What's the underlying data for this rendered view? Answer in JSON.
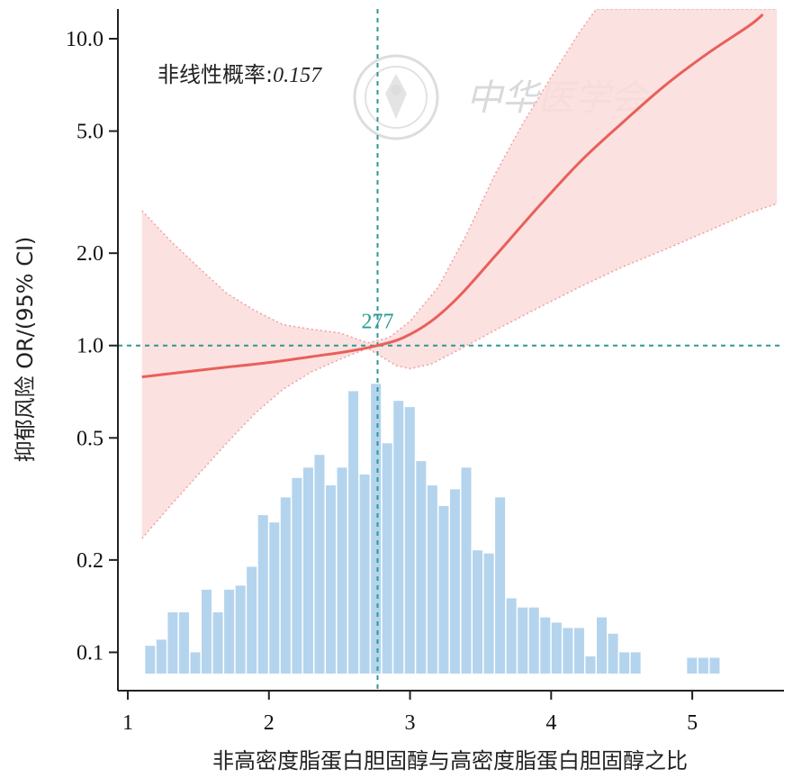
{
  "chart_data": {
    "type": "line",
    "xlabel": "非高密度脂蛋白胆固醇与高密度脂蛋白胆固醇之比",
    "ylabel": "抑郁风险 OR/(95% CI)",
    "y_scale": "log",
    "xlim": [
      0.93,
      5.65
    ],
    "ylim": [
      0.075,
      12.5
    ],
    "x_ticks": [
      "1",
      "2",
      "3",
      "4",
      "5"
    ],
    "y_ticks": [
      "0.1",
      "0.2",
      "0.5",
      "1.0",
      "2.0",
      "5.0",
      "10.0"
    ],
    "annotation_label": "非线性概率:",
    "annotation_value": "0.157",
    "reference_label": "277",
    "reference_x": 2.77,
    "reference_y": 1.0,
    "watermark": "中华医学会",
    "colors": {
      "curve": "#e8605a",
      "band": "#fbdcdc",
      "band_edge": "#f0a0a0",
      "histogram": "#b4d4ee",
      "reference": "#2a9a94"
    },
    "or_curve": [
      {
        "x": 1.1,
        "y": 0.79
      },
      {
        "x": 1.4,
        "y": 0.82
      },
      {
        "x": 1.7,
        "y": 0.85
      },
      {
        "x": 2.0,
        "y": 0.88
      },
      {
        "x": 2.3,
        "y": 0.92
      },
      {
        "x": 2.55,
        "y": 0.955
      },
      {
        "x": 2.77,
        "y": 1.0
      },
      {
        "x": 2.95,
        "y": 1.06
      },
      {
        "x": 3.15,
        "y": 1.2
      },
      {
        "x": 3.35,
        "y": 1.45
      },
      {
        "x": 3.6,
        "y": 1.95
      },
      {
        "x": 3.9,
        "y": 2.8
      },
      {
        "x": 4.2,
        "y": 3.95
      },
      {
        "x": 4.5,
        "y": 5.3
      },
      {
        "x": 4.8,
        "y": 7.0
      },
      {
        "x": 5.1,
        "y": 8.9
      },
      {
        "x": 5.4,
        "y": 11.0
      },
      {
        "x": 5.5,
        "y": 12.0
      }
    ],
    "ci_upper": [
      {
        "x": 1.1,
        "y": 2.75
      },
      {
        "x": 1.3,
        "y": 2.2
      },
      {
        "x": 1.5,
        "y": 1.8
      },
      {
        "x": 1.7,
        "y": 1.48
      },
      {
        "x": 1.9,
        "y": 1.3
      },
      {
        "x": 2.1,
        "y": 1.17
      },
      {
        "x": 2.3,
        "y": 1.13
      },
      {
        "x": 2.5,
        "y": 1.1
      },
      {
        "x": 2.7,
        "y": 1.02
      },
      {
        "x": 2.85,
        "y": 1.06
      },
      {
        "x": 3.0,
        "y": 1.2
      },
      {
        "x": 3.2,
        "y": 1.55
      },
      {
        "x": 3.4,
        "y": 2.3
      },
      {
        "x": 3.6,
        "y": 3.6
      },
      {
        "x": 3.8,
        "y": 5.3
      },
      {
        "x": 4.0,
        "y": 7.5
      },
      {
        "x": 4.2,
        "y": 10.5
      },
      {
        "x": 4.32,
        "y": 12.5
      },
      {
        "x": 5.6,
        "y": 12.5
      }
    ],
    "ci_lower": [
      {
        "x": 1.1,
        "y": 0.235
      },
      {
        "x": 1.3,
        "y": 0.3
      },
      {
        "x": 1.5,
        "y": 0.38
      },
      {
        "x": 1.7,
        "y": 0.48
      },
      {
        "x": 1.9,
        "y": 0.6
      },
      {
        "x": 2.1,
        "y": 0.72
      },
      {
        "x": 2.3,
        "y": 0.82
      },
      {
        "x": 2.5,
        "y": 0.9
      },
      {
        "x": 2.7,
        "y": 0.98
      },
      {
        "x": 2.9,
        "y": 0.86
      },
      {
        "x": 3.0,
        "y": 0.84
      },
      {
        "x": 3.15,
        "y": 0.87
      },
      {
        "x": 3.35,
        "y": 0.97
      },
      {
        "x": 3.6,
        "y": 1.12
      },
      {
        "x": 3.9,
        "y": 1.32
      },
      {
        "x": 4.2,
        "y": 1.55
      },
      {
        "x": 4.5,
        "y": 1.8
      },
      {
        "x": 4.8,
        "y": 2.05
      },
      {
        "x": 5.1,
        "y": 2.35
      },
      {
        "x": 5.4,
        "y": 2.7
      },
      {
        "x": 5.6,
        "y": 2.9
      }
    ],
    "histogram_bin_width": 0.08,
    "histogram_bins": [
      {
        "x": 1.16,
        "h": 0.105
      },
      {
        "x": 1.24,
        "h": 0.11
      },
      {
        "x": 1.32,
        "h": 0.135
      },
      {
        "x": 1.4,
        "h": 0.135
      },
      {
        "x": 1.48,
        "h": 0.1
      },
      {
        "x": 1.56,
        "h": 0.16
      },
      {
        "x": 1.64,
        "h": 0.135
      },
      {
        "x": 1.72,
        "h": 0.16
      },
      {
        "x": 1.8,
        "h": 0.165
      },
      {
        "x": 1.88,
        "h": 0.19
      },
      {
        "x": 1.96,
        "h": 0.28
      },
      {
        "x": 2.04,
        "h": 0.265
      },
      {
        "x": 2.12,
        "h": 0.32
      },
      {
        "x": 2.2,
        "h": 0.37
      },
      {
        "x": 2.28,
        "h": 0.4
      },
      {
        "x": 2.36,
        "h": 0.44
      },
      {
        "x": 2.44,
        "h": 0.35
      },
      {
        "x": 2.52,
        "h": 0.4
      },
      {
        "x": 2.6,
        "h": 0.71
      },
      {
        "x": 2.68,
        "h": 0.38
      },
      {
        "x": 2.76,
        "h": 0.75
      },
      {
        "x": 2.84,
        "h": 0.48
      },
      {
        "x": 2.92,
        "h": 0.66
      },
      {
        "x": 3.0,
        "h": 0.63
      },
      {
        "x": 3.08,
        "h": 0.42
      },
      {
        "x": 3.16,
        "h": 0.35
      },
      {
        "x": 3.24,
        "h": 0.3
      },
      {
        "x": 3.32,
        "h": 0.34
      },
      {
        "x": 3.4,
        "h": 0.4
      },
      {
        "x": 3.48,
        "h": 0.215
      },
      {
        "x": 3.56,
        "h": 0.21
      },
      {
        "x": 3.64,
        "h": 0.32
      },
      {
        "x": 3.72,
        "h": 0.15
      },
      {
        "x": 3.8,
        "h": 0.14
      },
      {
        "x": 3.88,
        "h": 0.14
      },
      {
        "x": 3.96,
        "h": 0.13
      },
      {
        "x": 4.04,
        "h": 0.125
      },
      {
        "x": 4.12,
        "h": 0.12
      },
      {
        "x": 4.2,
        "h": 0.12
      },
      {
        "x": 4.28,
        "h": 0.097
      },
      {
        "x": 4.36,
        "h": 0.13
      },
      {
        "x": 4.44,
        "h": 0.115
      },
      {
        "x": 4.52,
        "h": 0.1
      },
      {
        "x": 4.6,
        "h": 0.1
      },
      {
        "x": 5.0,
        "h": 0.096
      },
      {
        "x": 5.08,
        "h": 0.096
      },
      {
        "x": 5.16,
        "h": 0.096
      }
    ]
  }
}
